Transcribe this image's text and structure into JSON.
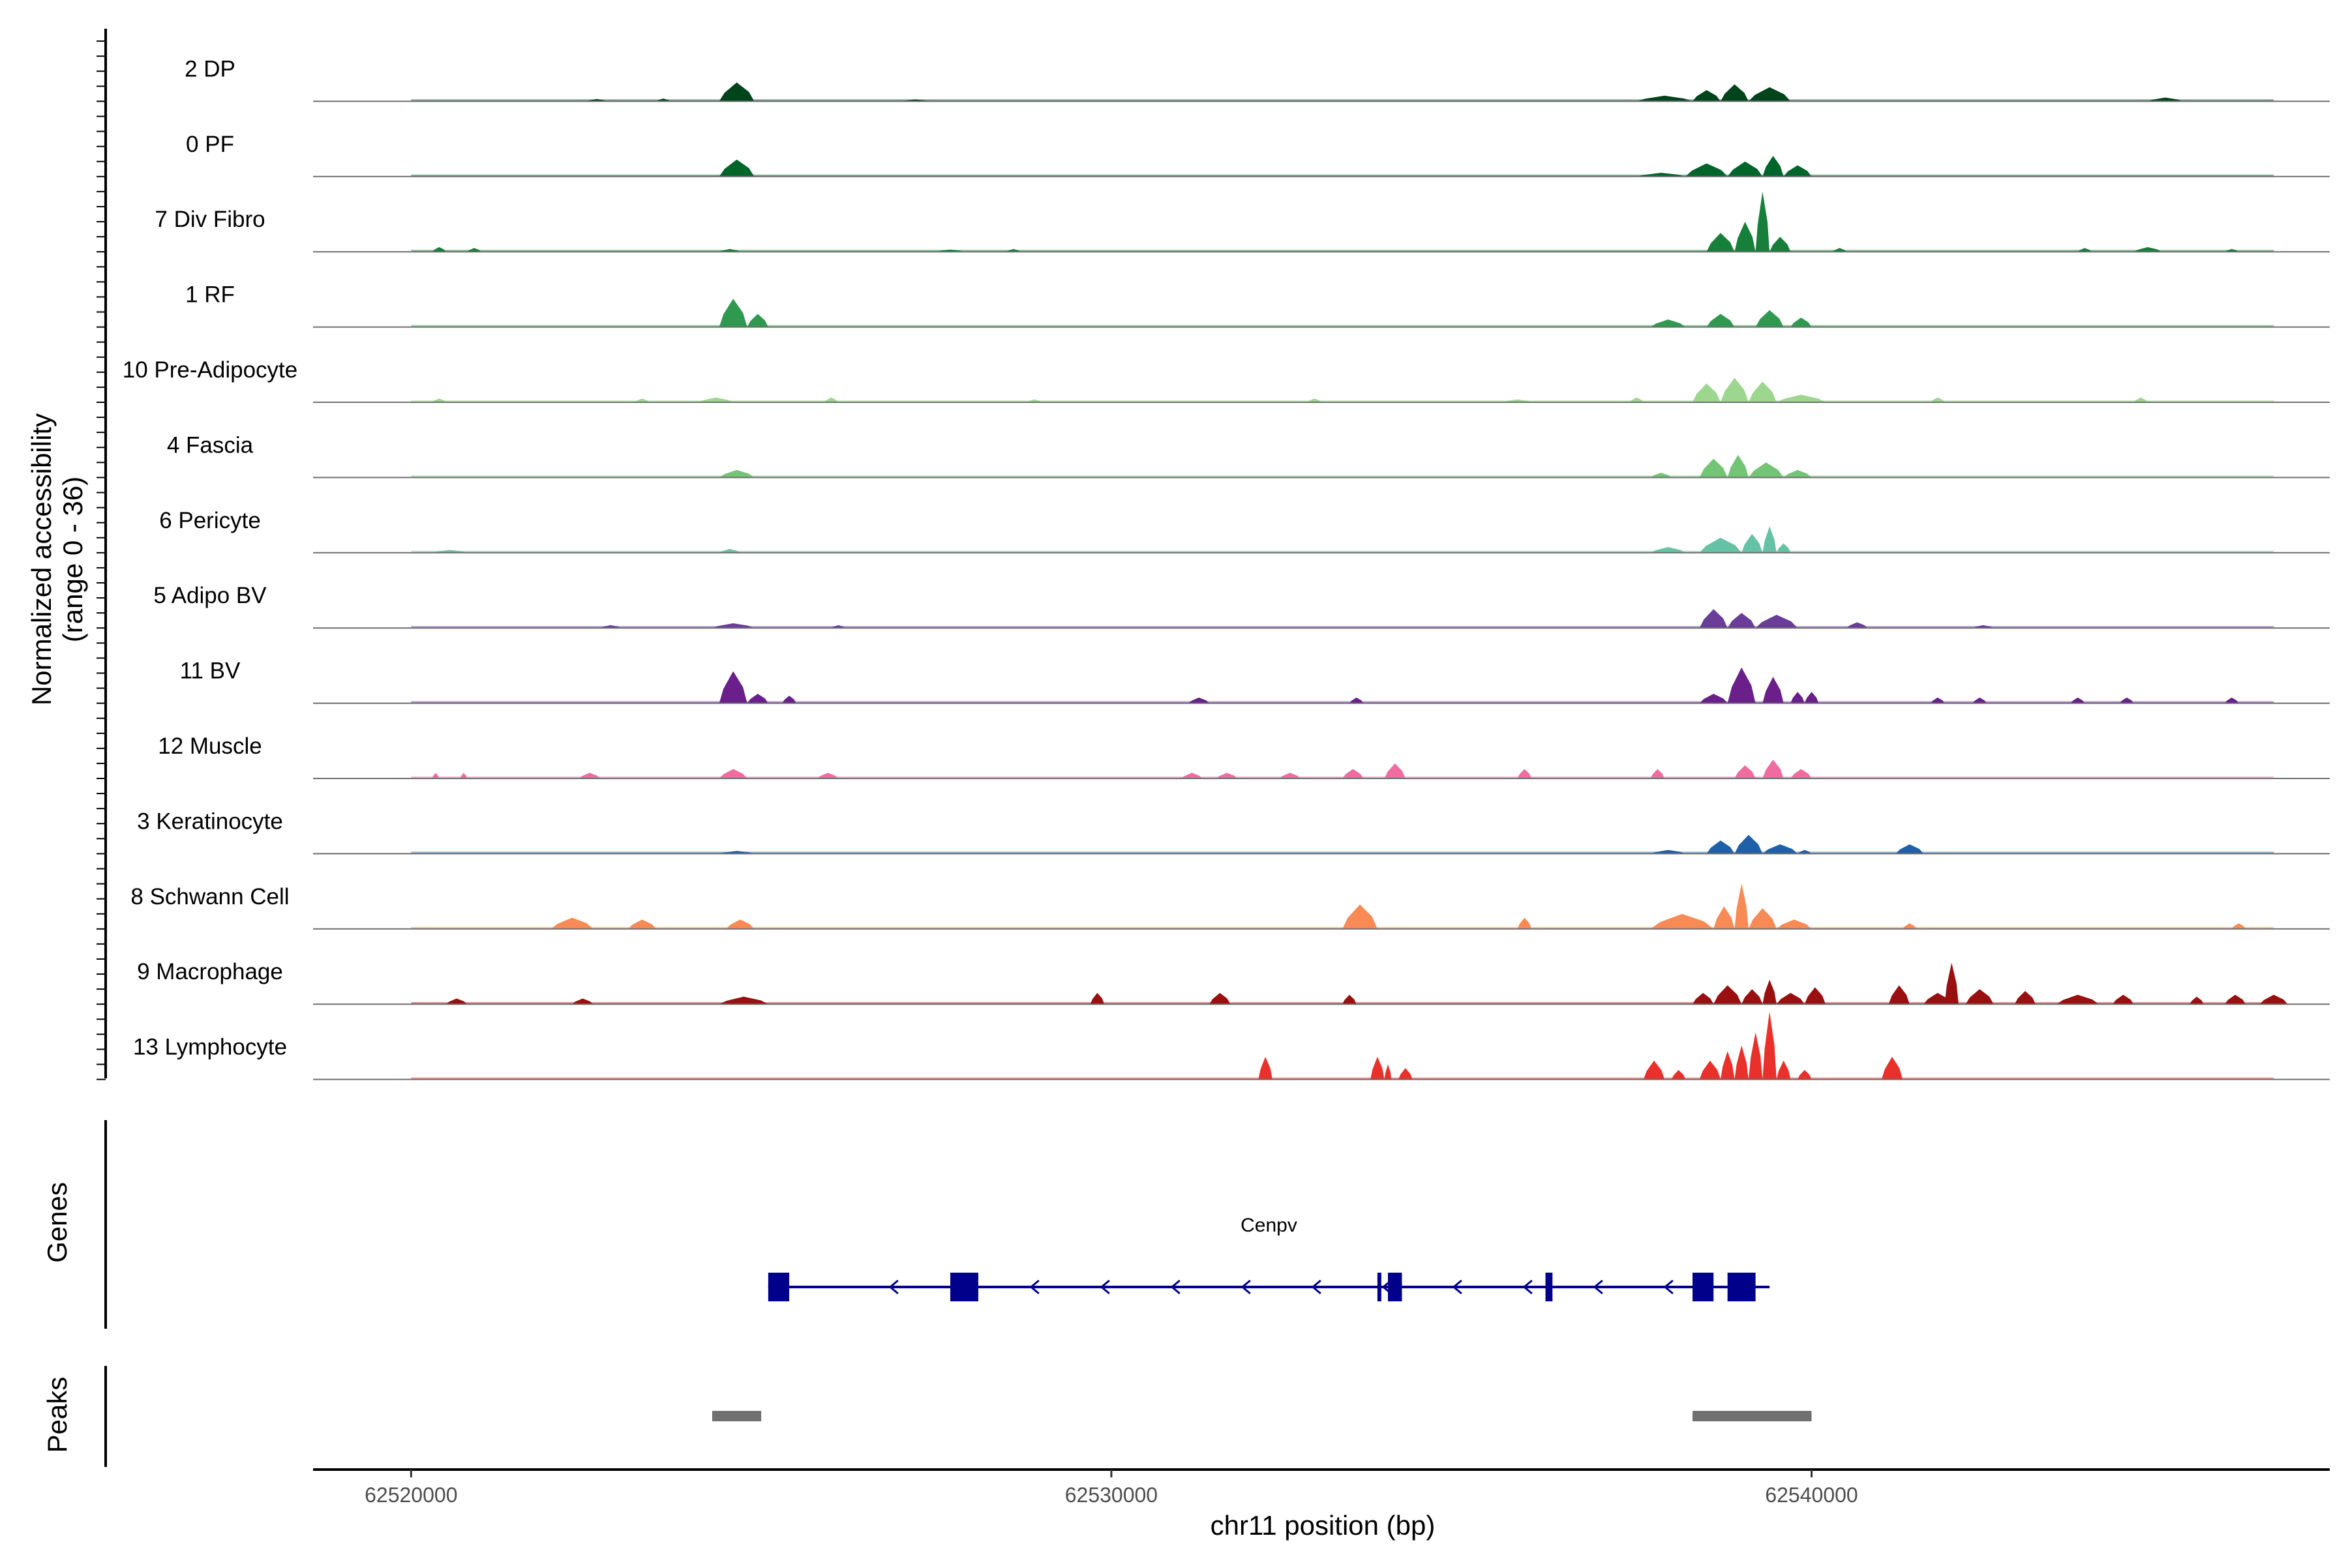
{
  "chart_data": {
    "type": "area",
    "title": "",
    "ylabel_line1": "Normalized accessibility",
    "ylabel_line2": "(range 0 - 36)",
    "y_range": [
      0,
      36
    ],
    "xlabel": "chr11 position (bp)",
    "xlim": [
      62518600,
      62547400
    ],
    "x_ticks": [
      {
        "value": 62520000,
        "label": "62520000"
      },
      {
        "value": 62530000,
        "label": "62530000"
      },
      {
        "value": 62540000,
        "label": "62540000"
      }
    ],
    "tracks": [
      {
        "name": "2 DP",
        "color": "#00441b",
        "peaks": [
          [
            62524400,
            62524900,
            10
          ],
          [
            62523500,
            62523700,
            1.5
          ],
          [
            62522500,
            62522800,
            1.2
          ],
          [
            62527000,
            62527400,
            1
          ],
          [
            62538300,
            62538700,
            6
          ],
          [
            62538700,
            62539100,
            9
          ],
          [
            62539100,
            62539700,
            7.5
          ],
          [
            62537500,
            62538300,
            3
          ],
          [
            62544800,
            62545300,
            2
          ]
        ]
      },
      {
        "name": "0 PF",
        "color": "#00652b",
        "peaks": [
          [
            62524400,
            62524900,
            9
          ],
          [
            62538200,
            62538800,
            7
          ],
          [
            62538800,
            62539300,
            8
          ],
          [
            62539300,
            62539600,
            11
          ],
          [
            62539600,
            62540000,
            6
          ],
          [
            62537500,
            62538200,
            2
          ]
        ]
      },
      {
        "name": "7 Div Fibro",
        "color": "#16803b",
        "peaks": [
          [
            62520300,
            62520500,
            2.5
          ],
          [
            62520800,
            62521000,
            2
          ],
          [
            62524400,
            62524700,
            1.5
          ],
          [
            62527500,
            62527900,
            1.2
          ],
          [
            62528500,
            62528700,
            1.5
          ],
          [
            62538500,
            62538900,
            10
          ],
          [
            62538900,
            62539200,
            16
          ],
          [
            62539200,
            62539400,
            32
          ],
          [
            62539400,
            62539700,
            8
          ],
          [
            62540300,
            62540500,
            2
          ],
          [
            62543800,
            62544000,
            2
          ],
          [
            62544600,
            62545000,
            2.5
          ],
          [
            62545900,
            62546100,
            1.5
          ]
        ]
      },
      {
        "name": "1 RF",
        "color": "#2f9a4f",
        "peaks": [
          [
            62524400,
            62524800,
            15
          ],
          [
            62524800,
            62525100,
            7
          ],
          [
            62537700,
            62538200,
            4
          ],
          [
            62538500,
            62538900,
            7
          ],
          [
            62539200,
            62539600,
            9
          ],
          [
            62539700,
            62540000,
            5
          ]
        ]
      },
      {
        "name": "10 Pre-Adipocyte",
        "color": "#9cd68f",
        "peaks": [
          [
            62520300,
            62520500,
            2
          ],
          [
            62523200,
            62523400,
            2
          ],
          [
            62524100,
            62524600,
            2.5
          ],
          [
            62525900,
            62526100,
            2.5
          ],
          [
            62528800,
            62529000,
            1.5
          ],
          [
            62532800,
            62533000,
            2
          ],
          [
            62535600,
            62536000,
            1.5
          ],
          [
            62537400,
            62537600,
            2.5
          ],
          [
            62538300,
            62538700,
            10
          ],
          [
            62538700,
            62539100,
            13
          ],
          [
            62539100,
            62539500,
            11
          ],
          [
            62539500,
            62540200,
            4
          ],
          [
            62541700,
            62541900,
            2.5
          ],
          [
            62544600,
            62544800,
            2.5
          ]
        ]
      },
      {
        "name": "4 Fascia",
        "color": "#74c476",
        "peaks": [
          [
            62524400,
            62524900,
            4
          ],
          [
            62537700,
            62538000,
            2.5
          ],
          [
            62538400,
            62538800,
            10
          ],
          [
            62538800,
            62539100,
            12
          ],
          [
            62539100,
            62539600,
            8
          ],
          [
            62539600,
            62540000,
            4
          ]
        ]
      },
      {
        "name": "6 Pericyte",
        "color": "#66c2a4",
        "peaks": [
          [
            62520300,
            62520800,
            1.5
          ],
          [
            62524400,
            62524700,
            2
          ],
          [
            62537700,
            62538200,
            3
          ],
          [
            62538400,
            62539000,
            8
          ],
          [
            62539000,
            62539300,
            10
          ],
          [
            62539300,
            62539500,
            14
          ],
          [
            62539500,
            62539700,
            5
          ]
        ]
      },
      {
        "name": "5 Adipo BV",
        "color": "#6a3d9a",
        "peaks": [
          [
            62522700,
            62523000,
            1.5
          ],
          [
            62524300,
            62524900,
            2.5
          ],
          [
            62526000,
            62526200,
            1.5
          ],
          [
            62538400,
            62538800,
            10
          ],
          [
            62538800,
            62539200,
            8
          ],
          [
            62539200,
            62539800,
            7
          ],
          [
            62540500,
            62540800,
            3
          ],
          [
            62542300,
            62542600,
            1.5
          ]
        ]
      },
      {
        "name": "11 BV",
        "color": "#6a1f8a",
        "peaks": [
          [
            62524400,
            62524800,
            17
          ],
          [
            62524800,
            62525100,
            5
          ],
          [
            62525300,
            62525500,
            4
          ],
          [
            62531100,
            62531400,
            3
          ],
          [
            62533400,
            62533600,
            3
          ],
          [
            62538400,
            62538800,
            5
          ],
          [
            62538800,
            62539200,
            19
          ],
          [
            62539300,
            62539600,
            14
          ],
          [
            62539700,
            62539900,
            6
          ],
          [
            62539900,
            62540100,
            6
          ],
          [
            62541700,
            62541900,
            3
          ],
          [
            62542300,
            62542500,
            3
          ],
          [
            62543700,
            62543900,
            3
          ],
          [
            62544400,
            62544600,
            3
          ],
          [
            62545900,
            62546100,
            3
          ]
        ]
      },
      {
        "name": "12 Muscle",
        "color": "#f06ca0",
        "peaks": [
          [
            62520300,
            62520400,
            3
          ],
          [
            62520700,
            62520800,
            3
          ],
          [
            62522400,
            62522700,
            3
          ],
          [
            62524400,
            62524800,
            5
          ],
          [
            62525800,
            62526100,
            3
          ],
          [
            62531000,
            62531300,
            3
          ],
          [
            62531500,
            62531800,
            3
          ],
          [
            62532400,
            62532700,
            3
          ],
          [
            62533300,
            62533600,
            5
          ],
          [
            62533900,
            62534200,
            8
          ],
          [
            62535800,
            62536000,
            5
          ],
          [
            62537700,
            62537900,
            5
          ],
          [
            62538900,
            62539200,
            7
          ],
          [
            62539300,
            62539600,
            10
          ],
          [
            62539700,
            62540000,
            5
          ]
        ]
      },
      {
        "name": "3 Keratinocyte",
        "color": "#2060a8",
        "peaks": [
          [
            62524400,
            62524900,
            1.5
          ],
          [
            62537700,
            62538200,
            2
          ],
          [
            62538500,
            62538900,
            7
          ],
          [
            62538900,
            62539300,
            10
          ],
          [
            62539300,
            62539800,
            5
          ],
          [
            62539800,
            62540000,
            2
          ],
          [
            62541200,
            62541600,
            5
          ]
        ]
      },
      {
        "name": "8 Schwann Cell",
        "color": "#f78a55",
        "peaks": [
          [
            62522000,
            62522600,
            6
          ],
          [
            62523100,
            62523500,
            5
          ],
          [
            62524500,
            62524900,
            5
          ],
          [
            62533300,
            62533800,
            13
          ],
          [
            62535800,
            62536000,
            6
          ],
          [
            62537700,
            62538600,
            8
          ],
          [
            62538600,
            62538900,
            12
          ],
          [
            62538900,
            62539100,
            24
          ],
          [
            62539100,
            62539500,
            11
          ],
          [
            62539500,
            62540000,
            5
          ],
          [
            62541300,
            62541500,
            3
          ],
          [
            62546000,
            62546200,
            3
          ]
        ]
      },
      {
        "name": "9 Macrophage",
        "color": "#9a0f0f",
        "peaks": [
          [
            62520500,
            62520800,
            3
          ],
          [
            62522300,
            62522600,
            3
          ],
          [
            62524400,
            62525100,
            4
          ],
          [
            62529700,
            62529900,
            6
          ],
          [
            62531400,
            62531700,
            6
          ],
          [
            62533300,
            62533500,
            5
          ],
          [
            62538300,
            62538600,
            6
          ],
          [
            62538600,
            62539000,
            10
          ],
          [
            62539000,
            62539300,
            8
          ],
          [
            62539300,
            62539500,
            13
          ],
          [
            62539500,
            62539900,
            6
          ],
          [
            62539900,
            62540200,
            9
          ],
          [
            62541100,
            62541400,
            10
          ],
          [
            62541600,
            62542000,
            6
          ],
          [
            62541900,
            62542100,
            22
          ],
          [
            62542200,
            62542600,
            8
          ],
          [
            62542900,
            62543200,
            7
          ],
          [
            62543500,
            62544100,
            5
          ],
          [
            62544300,
            62544600,
            5
          ],
          [
            62545400,
            62545600,
            4
          ],
          [
            62545900,
            62546200,
            5
          ],
          [
            62546400,
            62546800,
            5
          ]
        ]
      },
      {
        "name": "13 Lymphocyte",
        "color": "#e8312a",
        "peaks": [
          [
            62532100,
            62532300,
            12
          ],
          [
            62533700,
            62533900,
            12
          ],
          [
            62533900,
            62534000,
            8
          ],
          [
            62534100,
            62534300,
            6
          ],
          [
            62537600,
            62537900,
            10
          ],
          [
            62538000,
            62538200,
            5
          ],
          [
            62538400,
            62538700,
            10
          ],
          [
            62538700,
            62538900,
            15
          ],
          [
            62538900,
            62539100,
            18
          ],
          [
            62539100,
            62539300,
            25
          ],
          [
            62539300,
            62539500,
            36
          ],
          [
            62539500,
            62539700,
            10
          ],
          [
            62539800,
            62540000,
            5
          ],
          [
            62541000,
            62541300,
            12
          ]
        ]
      }
    ],
    "genes_track": {
      "label": "Genes",
      "gene_name": "Cenpv",
      "strand": "-",
      "span": [
        62525100,
        62539400
      ],
      "exons": [
        [
          62525100,
          62525400
        ],
        [
          62527700,
          62528100
        ],
        [
          62533800,
          62533850
        ],
        [
          62533950,
          62534150
        ],
        [
          62536200,
          62536300
        ],
        [
          62538300,
          62538600
        ],
        [
          62538800,
          62539200
        ]
      ]
    },
    "peaks_track": {
      "label": "Peaks",
      "regions": [
        [
          62524300,
          62525000
        ],
        [
          62538300,
          62540000
        ]
      ]
    }
  }
}
